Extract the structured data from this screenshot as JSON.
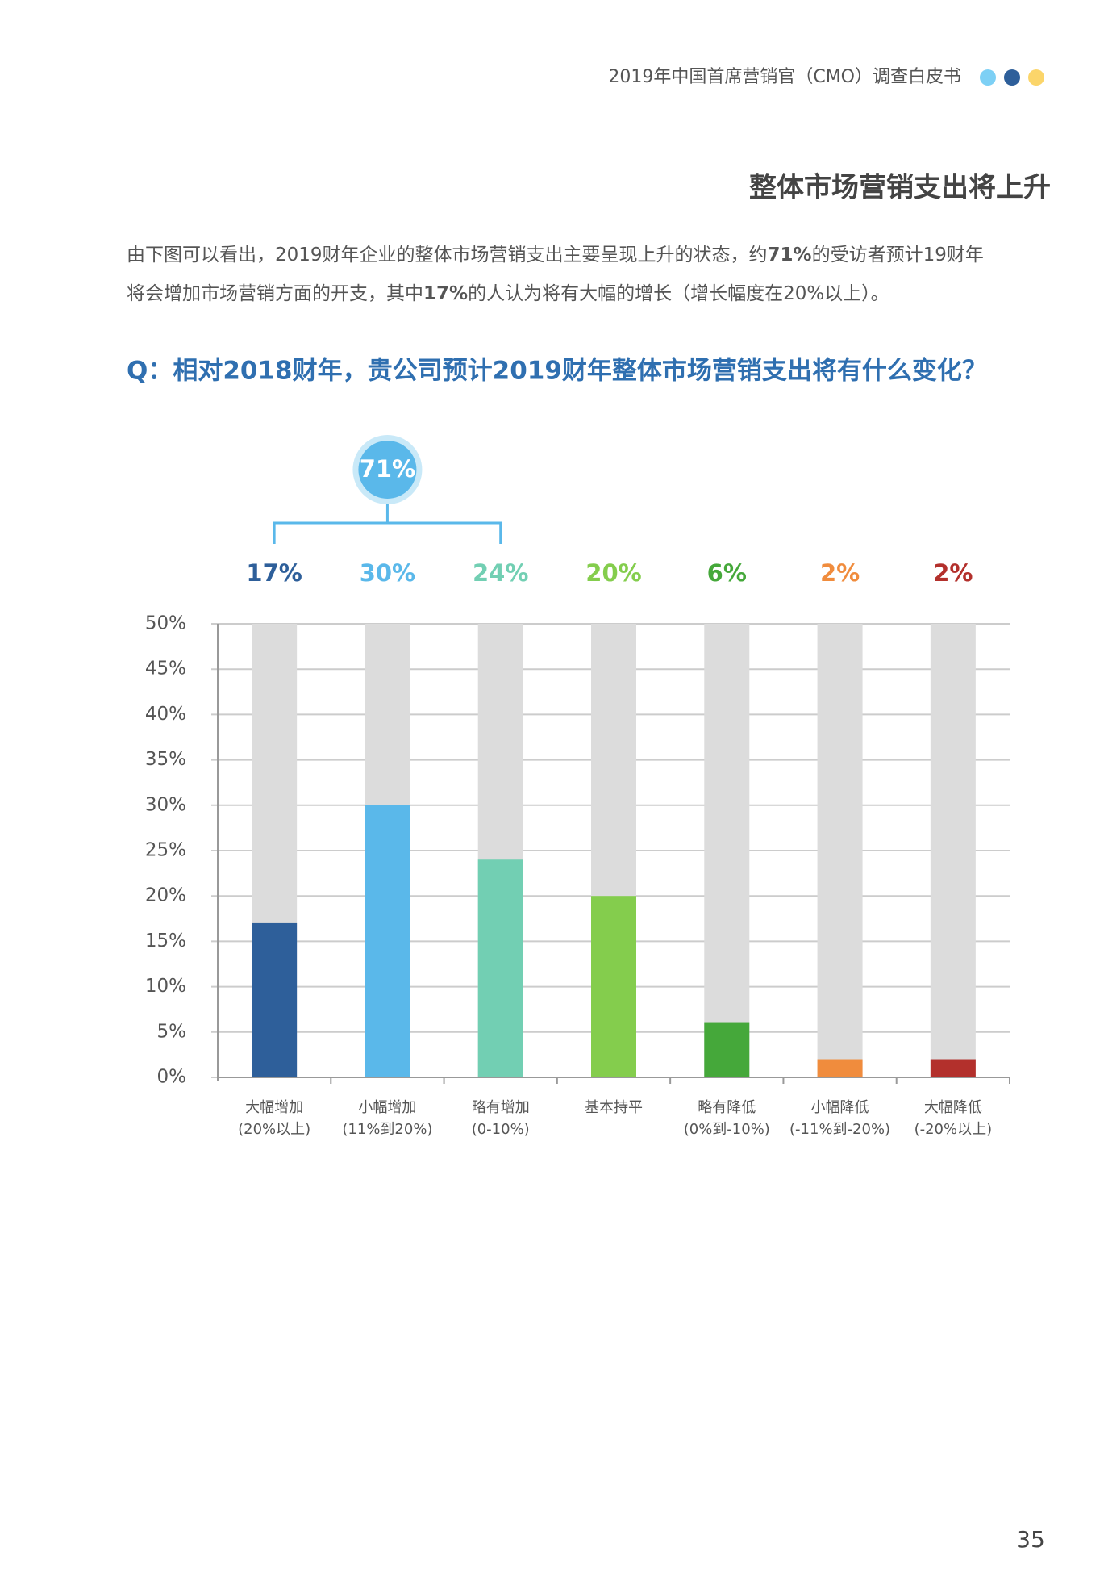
{
  "header": {
    "title": "2019年中国首席营销官（CMO）调查白皮书"
  },
  "heading": "整体市场营销支出将上升",
  "paragraph": [
    [
      {
        "text": "由下图可以看出，2019财年企业的整体市场营销支出主要呈现上升的状态，约",
        "bold": false
      },
      {
        "text": "71%",
        "bold": true
      },
      {
        "text": "的受访者预计19财年",
        "bold": false
      }
    ],
    [
      {
        "text": "将会增加市场营销方面的开支，其中",
        "bold": false
      },
      {
        "text": "17%",
        "bold": true
      },
      {
        "text": "的人认为将有大幅的增长（增长幅度在20%以上）。",
        "bold": false
      }
    ]
  ],
  "question": "Q：相对2018财年，贵公司预计2019财年整体市场营销支出将有什么变化？",
  "chart_data": {
    "type": "bar",
    "categories": [
      [
        "大幅增加",
        "(20%以上)"
      ],
      [
        "小幅增加",
        "(11%到20%)"
      ],
      [
        "略有增加",
        "(0-10%)"
      ],
      [
        "基本持平"
      ],
      [
        "略有降低",
        "(0%到-10%)"
      ],
      [
        "小幅降低",
        "(-11%到-20%)"
      ],
      [
        "大幅降低",
        "(-20%以上)"
      ]
    ],
    "values": [
      17,
      30,
      24,
      20,
      6,
      2,
      2
    ],
    "value_labels": [
      "17%",
      "30%",
      "24%",
      "20%",
      "6%",
      "2%",
      "2%"
    ],
    "colors": [
      "#2e5f9a",
      "#5ab8ea",
      "#72cfb3",
      "#84cd4d",
      "#45a83a",
      "#f08c3d",
      "#b3302c"
    ],
    "background_color": "#dcdcdc",
    "annotation": {
      "value": 71,
      "label": "71%"
    },
    "ylim": [
      0,
      50
    ],
    "yticks": [
      {
        "value": 0,
        "label": "0%"
      },
      {
        "value": 5,
        "label": "5%"
      },
      {
        "value": 10,
        "label": "10%"
      },
      {
        "value": 15,
        "label": "15%"
      },
      {
        "value": 20,
        "label": "20%"
      },
      {
        "value": 25,
        "label": "25%"
      },
      {
        "value": 30,
        "label": "30%"
      },
      {
        "value": 35,
        "label": "35%"
      },
      {
        "value": 40,
        "label": "40%"
      },
      {
        "value": 45,
        "label": "45%"
      },
      {
        "value": 50,
        "label": "50%"
      }
    ],
    "grid": true
  },
  "page_number": "35"
}
